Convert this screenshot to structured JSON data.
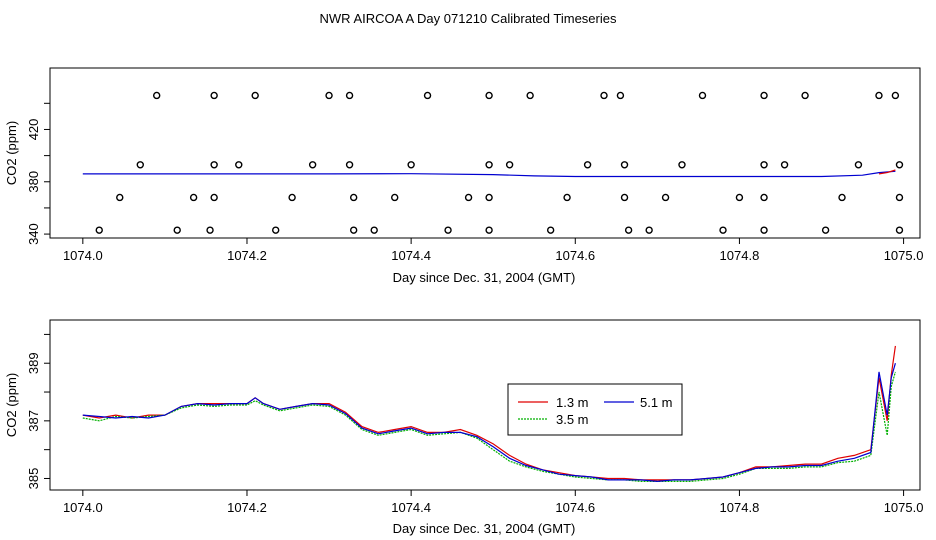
{
  "title": "NWR AIRCOA A  Day 071210  Calibrated Timeseries",
  "colors": {
    "red": "#e00000",
    "green": "#00b000",
    "blue": "#0000d0",
    "axis": "#000000"
  },
  "chart_data": [
    {
      "type": "line",
      "xlabel": "Day since Dec. 31, 2004 (GMT)",
      "ylabel": "CO2 (ppm)",
      "xlim": [
        1073.96,
        1075.02
      ],
      "ylim": [
        337,
        467
      ],
      "xticks": [
        1074.0,
        1074.2,
        1074.4,
        1074.6,
        1074.8,
        1075.0
      ],
      "xtick_labels": [
        "1074.0",
        "1074.2",
        "1074.4",
        "1074.6",
        "1074.8",
        "1075.0"
      ],
      "yticks": [
        340,
        380,
        420
      ],
      "ytick_labels": [
        "340",
        "380",
        "420"
      ],
      "yticks_minor": [
        360,
        400,
        440
      ],
      "series": [
        {
          "color": "blue",
          "x": [
            1074.0,
            1074.1,
            1074.2,
            1074.3,
            1074.4,
            1074.5,
            1074.55,
            1074.6,
            1074.7,
            1074.8,
            1074.9,
            1074.95,
            1074.97,
            1074.99
          ],
          "values": [
            386,
            386,
            386,
            386,
            386.2,
            385.5,
            384.5,
            384,
            384,
            384,
            384,
            385,
            387,
            388
          ]
        },
        {
          "color": "red",
          "x": [
            1074.97,
            1074.98,
            1074.99
          ],
          "values": [
            386,
            387,
            389
          ]
        }
      ],
      "markers": {
        "style": "open-circle",
        "x": [
          1074.09,
          1074.16,
          1074.21,
          1074.3,
          1074.325,
          1074.42,
          1074.495,
          1074.545,
          1074.635,
          1074.655,
          1074.755,
          1074.83,
          1074.88,
          1074.97,
          1074.99,
          1074.07,
          1074.16,
          1074.19,
          1074.28,
          1074.325,
          1074.4,
          1074.495,
          1074.52,
          1074.615,
          1074.66,
          1074.73,
          1074.83,
          1074.855,
          1074.945,
          1074.995,
          1074.045,
          1074.135,
          1074.16,
          1074.255,
          1074.33,
          1074.38,
          1074.47,
          1074.495,
          1074.59,
          1074.66,
          1074.71,
          1074.8,
          1074.83,
          1074.925,
          1074.995,
          1074.02,
          1074.115,
          1074.155,
          1074.235,
          1074.33,
          1074.355,
          1074.445,
          1074.495,
          1074.57,
          1074.665,
          1074.69,
          1074.78,
          1074.83,
          1074.905,
          1074.995
        ],
        "values": [
          446,
          446,
          446,
          446,
          446,
          446,
          446,
          446,
          446,
          446,
          446,
          446,
          446,
          446,
          446,
          393,
          393,
          393,
          393,
          393,
          393,
          393,
          393,
          393,
          393,
          393,
          393,
          393,
          393,
          393,
          368,
          368,
          368,
          368,
          368,
          368,
          368,
          368,
          368,
          368,
          368,
          368,
          368,
          368,
          368,
          343,
          343,
          343,
          343,
          343,
          343,
          343,
          343,
          343,
          343,
          343,
          343,
          343,
          343,
          343
        ]
      }
    },
    {
      "type": "line",
      "xlabel": "Day since Dec. 31, 2004 (GMT)",
      "ylabel": "CO2 (ppm)",
      "xlim": [
        1073.96,
        1075.02
      ],
      "ylim": [
        384.6,
        390.5
      ],
      "xticks": [
        1074.0,
        1074.2,
        1074.4,
        1074.6,
        1074.8,
        1075.0
      ],
      "xtick_labels": [
        "1074.0",
        "1074.2",
        "1074.4",
        "1074.6",
        "1074.8",
        "1075.0"
      ],
      "yticks": [
        385,
        387,
        389
      ],
      "ytick_labels": [
        "385",
        "387",
        "389"
      ],
      "yticks_minor": [
        386,
        388,
        390
      ],
      "legend": {
        "position": "center-right",
        "entries": [
          {
            "label": "1.3 m",
            "color": "red"
          },
          {
            "label": "5.1 m",
            "color": "blue"
          },
          {
            "label": "3.5 m",
            "color": "green"
          }
        ]
      },
      "series": [
        {
          "name": "1.3 m",
          "color": "red",
          "x": [
            1074.0,
            1074.02,
            1074.04,
            1074.06,
            1074.08,
            1074.1,
            1074.12,
            1074.14,
            1074.16,
            1074.18,
            1074.2,
            1074.21,
            1074.22,
            1074.24,
            1074.26,
            1074.28,
            1074.3,
            1074.32,
            1074.34,
            1074.36,
            1074.38,
            1074.4,
            1074.42,
            1074.44,
            1074.46,
            1074.48,
            1074.5,
            1074.52,
            1074.54,
            1074.56,
            1074.58,
            1074.6,
            1074.62,
            1074.64,
            1074.66,
            1074.68,
            1074.7,
            1074.72,
            1074.74,
            1074.76,
            1074.78,
            1074.8,
            1074.82,
            1074.84,
            1074.86,
            1074.88,
            1074.9,
            1074.92,
            1074.94,
            1074.96,
            1074.97,
            1074.98,
            1074.985,
            1074.99
          ],
          "values": [
            387.2,
            387.1,
            387.2,
            387.1,
            387.2,
            387.2,
            387.5,
            387.6,
            387.6,
            387.6,
            387.6,
            387.8,
            387.6,
            387.4,
            387.5,
            387.6,
            387.6,
            387.3,
            386.8,
            386.6,
            386.7,
            386.8,
            386.6,
            386.6,
            386.7,
            386.5,
            386.2,
            385.8,
            385.5,
            385.3,
            385.2,
            385.1,
            385.05,
            385.0,
            385.0,
            384.95,
            384.95,
            384.95,
            384.95,
            385.0,
            385.05,
            385.2,
            385.4,
            385.4,
            385.45,
            385.5,
            385.5,
            385.7,
            385.8,
            386.0,
            388.5,
            387.0,
            388.6,
            389.6
          ]
        },
        {
          "name": "3.5 m",
          "color": "green",
          "x": [
            1074.0,
            1074.02,
            1074.04,
            1074.06,
            1074.08,
            1074.1,
            1074.12,
            1074.14,
            1074.16,
            1074.18,
            1074.2,
            1074.21,
            1074.22,
            1074.24,
            1074.26,
            1074.28,
            1074.3,
            1074.32,
            1074.34,
            1074.36,
            1074.38,
            1074.4,
            1074.42,
            1074.44,
            1074.46,
            1074.48,
            1074.5,
            1074.52,
            1074.54,
            1074.56,
            1074.58,
            1074.6,
            1074.62,
            1074.64,
            1074.66,
            1074.68,
            1074.7,
            1074.72,
            1074.74,
            1074.76,
            1074.78,
            1074.8,
            1074.82,
            1074.84,
            1074.86,
            1074.88,
            1074.9,
            1074.92,
            1074.94,
            1074.96,
            1074.97,
            1074.98,
            1074.985,
            1074.99
          ],
          "values": [
            387.1,
            387.0,
            387.15,
            387.1,
            387.15,
            387.2,
            387.45,
            387.55,
            387.5,
            387.55,
            387.55,
            387.7,
            387.55,
            387.35,
            387.45,
            387.55,
            387.5,
            387.2,
            386.7,
            386.5,
            386.6,
            386.7,
            386.5,
            386.55,
            386.6,
            386.4,
            386.0,
            385.6,
            385.4,
            385.25,
            385.15,
            385.05,
            385.0,
            384.95,
            384.95,
            384.9,
            384.9,
            384.9,
            384.9,
            384.95,
            385.0,
            385.15,
            385.35,
            385.35,
            385.35,
            385.4,
            385.4,
            385.55,
            385.6,
            385.8,
            388.0,
            386.5,
            388.2,
            388.7
          ]
        },
        {
          "name": "5.1 m",
          "color": "blue",
          "x": [
            1074.0,
            1074.02,
            1074.04,
            1074.06,
            1074.08,
            1074.1,
            1074.12,
            1074.14,
            1074.16,
            1074.18,
            1074.2,
            1074.21,
            1074.22,
            1074.24,
            1074.26,
            1074.28,
            1074.3,
            1074.32,
            1074.34,
            1074.36,
            1074.38,
            1074.4,
            1074.42,
            1074.44,
            1074.46,
            1074.48,
            1074.5,
            1074.52,
            1074.54,
            1074.56,
            1074.58,
            1074.6,
            1074.62,
            1074.64,
            1074.66,
            1074.68,
            1074.7,
            1074.72,
            1074.74,
            1074.76,
            1074.78,
            1074.8,
            1074.82,
            1074.84,
            1074.86,
            1074.88,
            1074.9,
            1074.92,
            1074.94,
            1074.96,
            1074.97,
            1074.98,
            1074.985,
            1074.99
          ],
          "values": [
            387.2,
            387.15,
            387.1,
            387.15,
            387.1,
            387.2,
            387.5,
            387.6,
            387.55,
            387.6,
            387.6,
            387.8,
            387.6,
            387.4,
            387.5,
            387.6,
            387.55,
            387.25,
            386.75,
            386.55,
            386.65,
            386.75,
            386.55,
            386.6,
            386.6,
            386.45,
            386.1,
            385.7,
            385.45,
            385.3,
            385.15,
            385.1,
            385.05,
            384.95,
            384.95,
            384.95,
            384.9,
            384.95,
            384.95,
            385.0,
            385.05,
            385.2,
            385.35,
            385.4,
            385.4,
            385.45,
            385.45,
            385.6,
            385.7,
            385.9,
            388.7,
            387.2,
            388.5,
            389.0
          ]
        }
      ]
    }
  ]
}
